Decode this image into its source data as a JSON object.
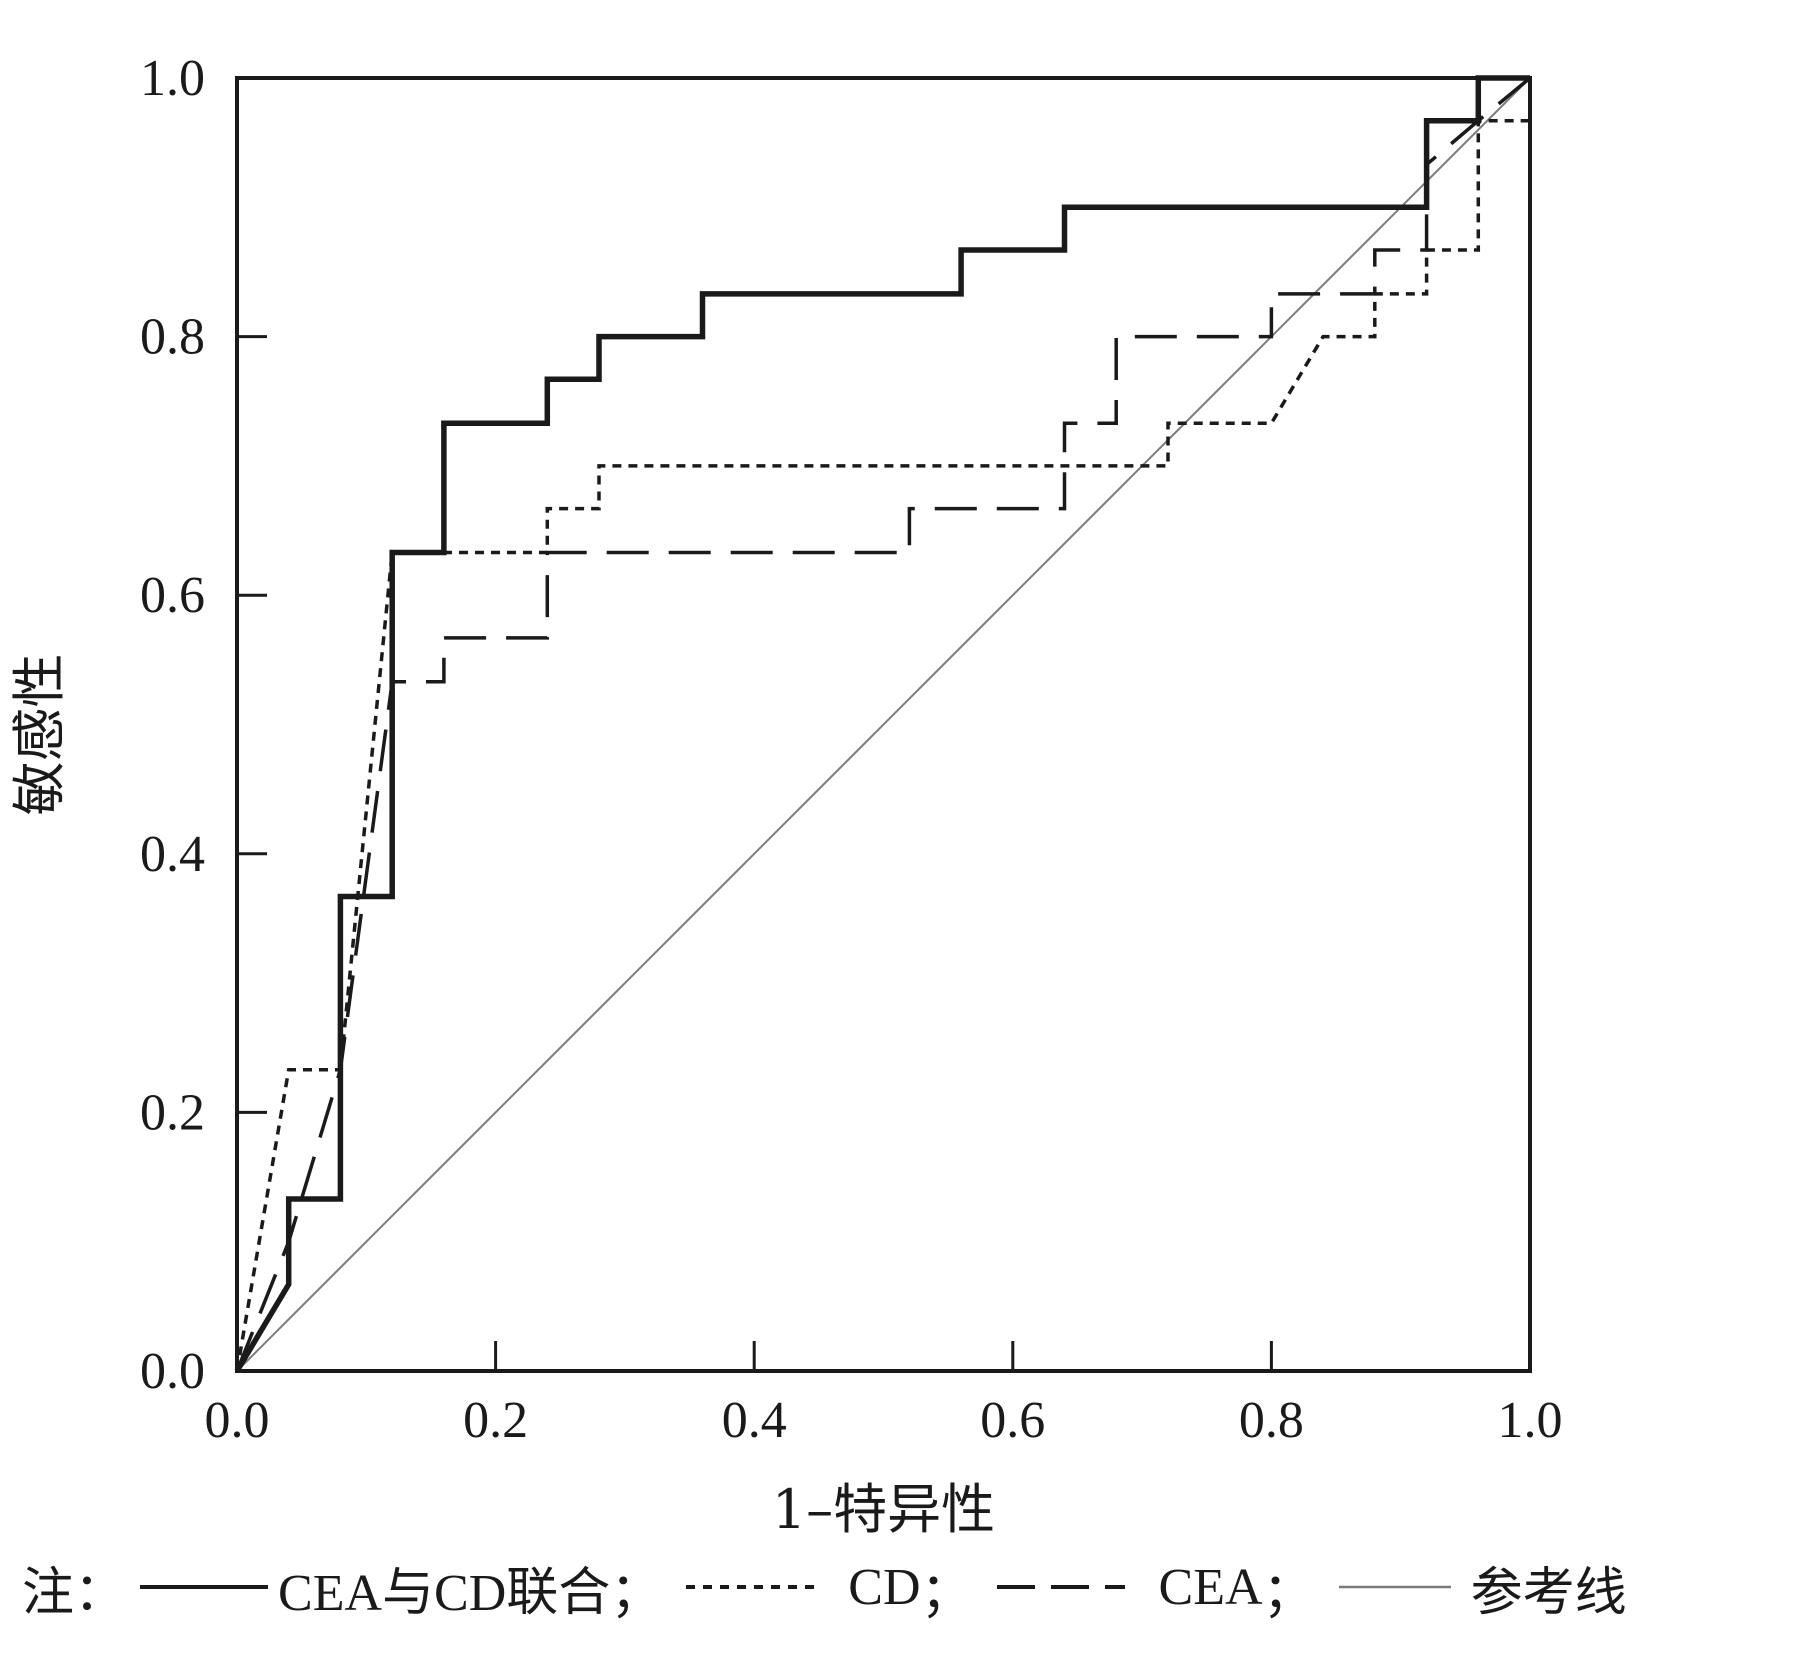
{
  "chart_data": {
    "type": "line",
    "title": "",
    "xlabel": "1–特异性",
    "ylabel": "敏感性",
    "xlim": [
      0,
      1
    ],
    "ylim": [
      0,
      1
    ],
    "x_ticks": [
      "0.0",
      "0.2",
      "0.4",
      "0.6",
      "0.8",
      "1.0"
    ],
    "y_ticks": [
      "0.0",
      "0.2",
      "0.4",
      "0.6",
      "0.8",
      "1.0"
    ],
    "grid": false,
    "legend_position": "bottom",
    "series": [
      {
        "name": "CEA与CD联合",
        "style": "solid-thick",
        "color": "#1a1a1a",
        "points": [
          [
            0,
            0
          ],
          [
            0.04,
            0.067
          ],
          [
            0.04,
            0.133
          ],
          [
            0.08,
            0.133
          ],
          [
            0.08,
            0.367
          ],
          [
            0.12,
            0.367
          ],
          [
            0.12,
            0.633
          ],
          [
            0.16,
            0.633
          ],
          [
            0.16,
            0.733
          ],
          [
            0.24,
            0.733
          ],
          [
            0.24,
            0.767
          ],
          [
            0.28,
            0.767
          ],
          [
            0.28,
            0.8
          ],
          [
            0.36,
            0.8
          ],
          [
            0.36,
            0.833
          ],
          [
            0.56,
            0.833
          ],
          [
            0.56,
            0.867
          ],
          [
            0.64,
            0.867
          ],
          [
            0.64,
            0.9
          ],
          [
            0.92,
            0.9
          ],
          [
            0.92,
            0.967
          ],
          [
            0.96,
            0.967
          ],
          [
            0.96,
            1
          ],
          [
            1,
            1
          ]
        ]
      },
      {
        "name": "CD",
        "style": "dotted",
        "color": "#1a1a1a",
        "points": [
          [
            0,
            0
          ],
          [
            0.04,
            0.233
          ],
          [
            0.08,
            0.233
          ],
          [
            0.12,
            0.633
          ],
          [
            0.24,
            0.633
          ],
          [
            0.24,
            0.667
          ],
          [
            0.28,
            0.667
          ],
          [
            0.28,
            0.7
          ],
          [
            0.72,
            0.7
          ],
          [
            0.72,
            0.733
          ],
          [
            0.8,
            0.733
          ],
          [
            0.84,
            0.8
          ],
          [
            0.88,
            0.8
          ],
          [
            0.88,
            0.833
          ],
          [
            0.92,
            0.833
          ],
          [
            0.92,
            0.867
          ],
          [
            0.96,
            0.867
          ],
          [
            0.96,
            0.967
          ],
          [
            1,
            0.967
          ],
          [
            1,
            1
          ]
        ]
      },
      {
        "name": "CEA",
        "style": "dashed",
        "color": "#1a1a1a",
        "points": [
          [
            0,
            0
          ],
          [
            0.04,
            0.1
          ],
          [
            0.08,
            0.233
          ],
          [
            0.12,
            0.533
          ],
          [
            0.16,
            0.533
          ],
          [
            0.16,
            0.567
          ],
          [
            0.24,
            0.567
          ],
          [
            0.24,
            0.633
          ],
          [
            0.52,
            0.633
          ],
          [
            0.52,
            0.667
          ],
          [
            0.64,
            0.667
          ],
          [
            0.64,
            0.733
          ],
          [
            0.68,
            0.733
          ],
          [
            0.68,
            0.8
          ],
          [
            0.8,
            0.8
          ],
          [
            0.8,
            0.833
          ],
          [
            0.88,
            0.833
          ],
          [
            0.88,
            0.867
          ],
          [
            0.92,
            0.867
          ],
          [
            0.92,
            0.933
          ],
          [
            0.96,
            0.967
          ],
          [
            1,
            1
          ]
        ]
      },
      {
        "name": "参考线",
        "style": "thin",
        "color": "#7a7a7a",
        "points": [
          [
            0,
            0
          ],
          [
            1,
            1
          ]
        ]
      }
    ]
  },
  "legend": {
    "prefix": "注：",
    "separator": "；"
  }
}
